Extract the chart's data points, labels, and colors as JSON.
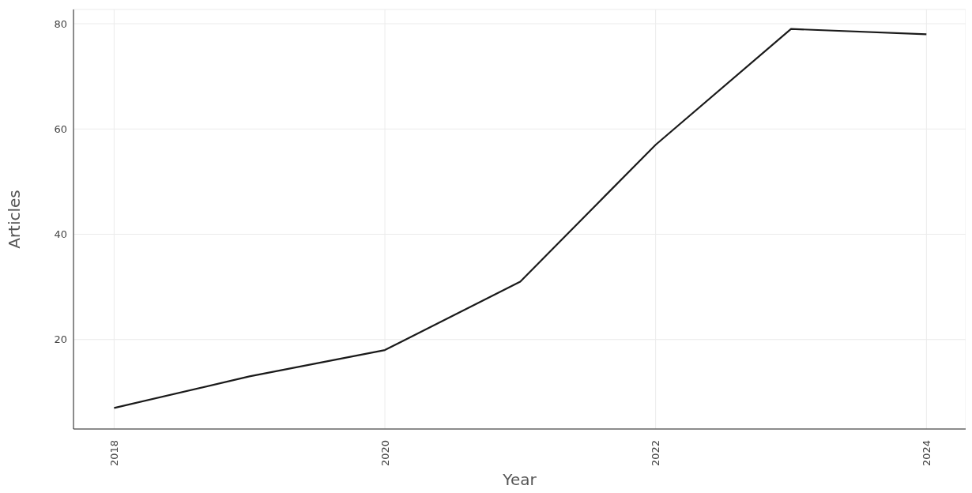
{
  "chart_data": {
    "type": "line",
    "xlabel": "Year",
    "ylabel": "Articles",
    "x": [
      2018,
      2019,
      2020,
      2021,
      2022,
      2023,
      2024
    ],
    "series": [
      {
        "color": "#1a1a1a",
        "values": [
          7,
          13,
          18,
          31,
          57,
          79,
          78
        ]
      }
    ],
    "xlim": [
      2017.7,
      2024.29
    ],
    "xticks": [
      2018,
      2020,
      2022,
      2024
    ],
    "ylim": [
      3,
      82.7
    ],
    "yticks": [
      20,
      40,
      60,
      80
    ],
    "grid": true,
    "legend": false,
    "marker": "none",
    "line_style": "solid"
  }
}
